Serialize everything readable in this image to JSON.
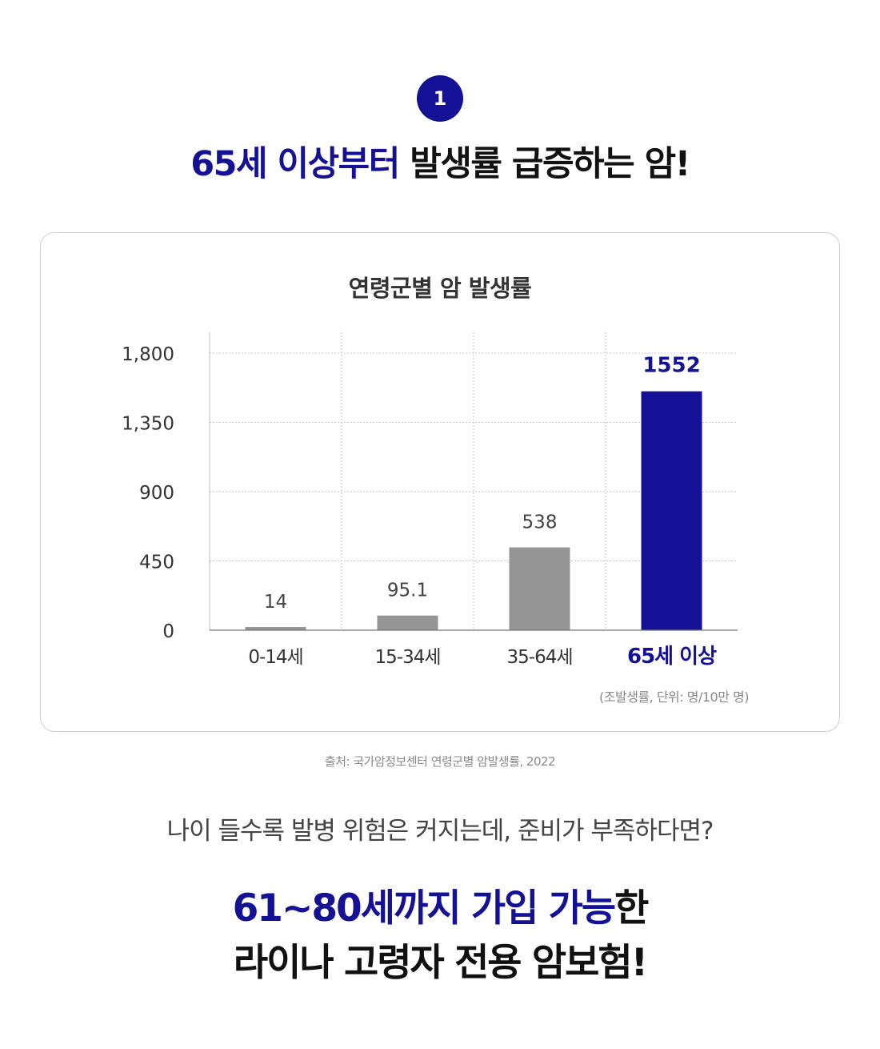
{
  "badge": {
    "number": "1"
  },
  "headline": {
    "accent_text": "65세 이상부터",
    "rest_text": " 발생률 급증하는 암!"
  },
  "chart_title": "연령군별 암 발생률",
  "chart_data": {
    "type": "bar",
    "title": "연령군별 암 발생률",
    "categories": [
      "0-14세",
      "15-34세",
      "35-64세",
      "65세 이상"
    ],
    "values": [
      14,
      95.1,
      538,
      1552
    ],
    "value_labels": [
      "14",
      "95.1",
      "538",
      "1552"
    ],
    "yticks": [
      0,
      450,
      900,
      1350,
      1800
    ],
    "ytick_labels": [
      "0",
      "450",
      "900",
      "1,350",
      "1,800"
    ],
    "ylim": [
      0,
      1800
    ],
    "grid": true,
    "highlight_index": 3,
    "colors": {
      "default": "#959595",
      "highlight": "#151196"
    },
    "unit_note": "(조발생률, 단위: 명/10만 명)"
  },
  "source_text": "출처: 국가암정보센터 연령군별 암발생률, 2022",
  "question_text": "나이 들수록 발병 위험은 커지는데, 준비가 부족하다면?",
  "cta": {
    "line1_accent": "61~80세까지 가입 가능",
    "line1_rest": "한",
    "line2": "라이나 고령자 전용 암보험!"
  },
  "colors": {
    "accent": "#151196",
    "bar_default": "#959595"
  }
}
